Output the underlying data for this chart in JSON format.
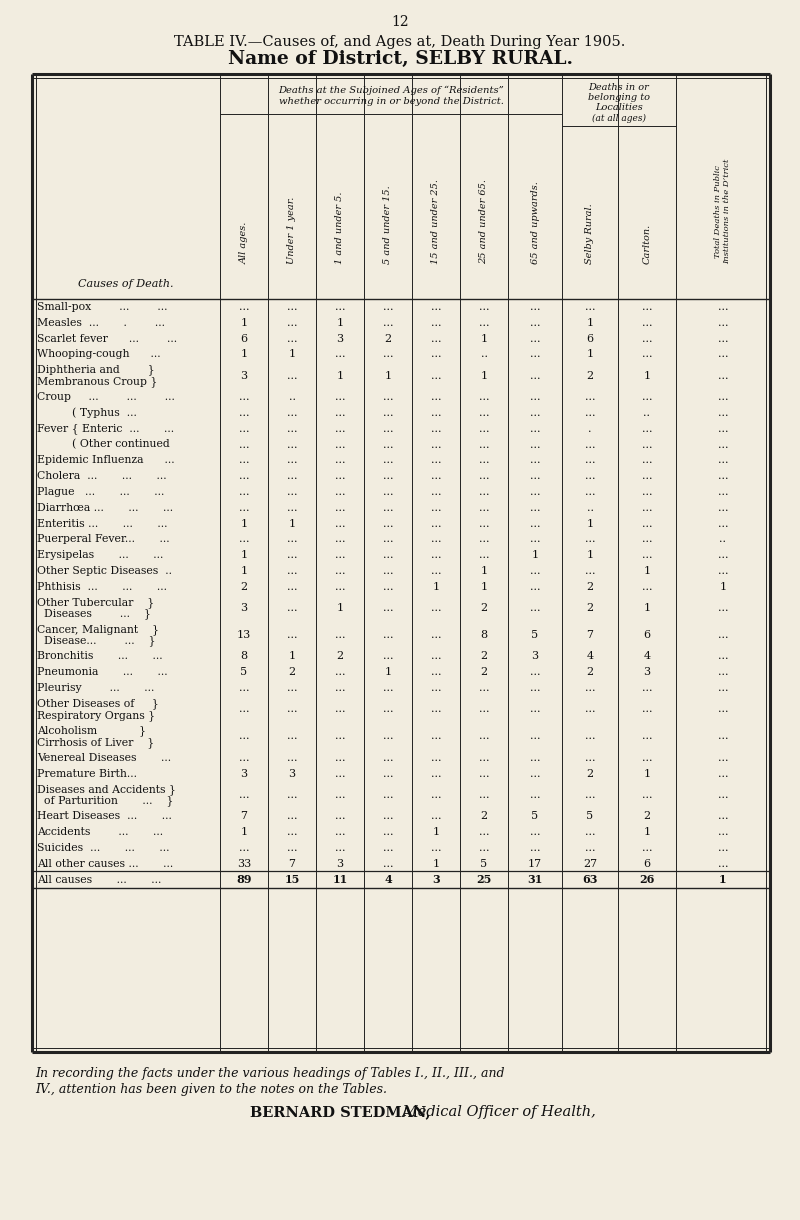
{
  "page_number": "12",
  "title_line1": "TABLE IV.—Causes of, and Ages at, Death During Year 1905.",
  "title_line2": "Name of District, SELBY RURAL.",
  "header_group1": "Deaths at the Subjoined Ages of “Residents”",
  "header_group1b": "whether occurring in or beyond the District.",
  "header_group2_1": "Deaths in or",
  "header_group2_2": "belonging to",
  "header_group2_3": "Localities",
  "header_group2_4": "(at all ages)",
  "header_last_col": "Total Deaths in Public\nInstitutions in the D’trict",
  "col_headers": [
    "All ages.",
    "Under 1 year.",
    "1 and under 5.",
    "5 and under 15.",
    "15 and under 25.",
    "25 and under 65.",
    "65 and upwards.",
    "Selby Rural.",
    "Carlton."
  ],
  "cause_col_label": "Causes of Death.",
  "rows": [
    {
      "label": "Small-pox        ...        ...",
      "vals": [
        "...",
        "...",
        "...",
        "...",
        "...",
        "...",
        "...",
        "...",
        "...",
        "..."
      ],
      "multiline": false
    },
    {
      "label": "Measles  ...       .        ...",
      "vals": [
        "1",
        "...",
        "1",
        "...",
        "...",
        "...",
        "...",
        "1",
        "...",
        "..."
      ],
      "multiline": false
    },
    {
      "label": "Scarlet fever      ...        ...",
      "vals": [
        "6",
        "...",
        "3",
        "2",
        "...",
        "1",
        "...",
        "6",
        "...",
        "..."
      ],
      "multiline": false
    },
    {
      "label": "Whooping-cough      ...",
      "vals": [
        "1",
        "1",
        "...",
        "...",
        "...",
        "..",
        "...",
        "1",
        "...",
        "..."
      ],
      "multiline": false
    },
    {
      "label": "Diphtheria and        }",
      "label2": "Membranous Croup }",
      "vals": [
        "3",
        "...",
        "1",
        "1",
        "...",
        "1",
        "...",
        "2",
        "1",
        "..."
      ],
      "multiline": true
    },
    {
      "label": "Croup     ...        ...        ...",
      "vals": [
        "...",
        "..",
        "...",
        "...",
        "...",
        "...",
        "...",
        "...",
        "...",
        "..."
      ],
      "multiline": false
    },
    {
      "label": "          ( Typhus  ...",
      "vals": [
        "...",
        "...",
        "...",
        "...",
        "...",
        "...",
        "...",
        "...",
        "..",
        "..."
      ],
      "multiline": false
    },
    {
      "label": "Fever { Enteric  ...       ...",
      "vals": [
        "...",
        "...",
        "...",
        "...",
        "...",
        "...",
        "...",
        ".",
        "...",
        "..."
      ],
      "multiline": false
    },
    {
      "label": "          ( Other continued",
      "vals": [
        "...",
        "...",
        "...",
        "...",
        "...",
        "...",
        "...",
        "...",
        "...",
        "..."
      ],
      "multiline": false
    },
    {
      "label": "Epidemic Influenza      ...",
      "vals": [
        "...",
        "...",
        "...",
        "...",
        "...",
        "...",
        "...",
        "...",
        "...",
        "..."
      ],
      "multiline": false
    },
    {
      "label": "Cholera  ...       ...       ...",
      "vals": [
        "...",
        "...",
        "...",
        "...",
        "...",
        "...",
        "...",
        "...",
        "...",
        "..."
      ],
      "multiline": false
    },
    {
      "label": "Plague   ...       ...       ...",
      "vals": [
        "...",
        "...",
        "...",
        "...",
        "...",
        "...",
        "...",
        "...",
        "...",
        "..."
      ],
      "multiline": false
    },
    {
      "label": "Diarrhœa ...       ...       ...",
      "vals": [
        "...",
        "...",
        "...",
        "...",
        "...",
        "...",
        "...",
        "..",
        "...",
        "..."
      ],
      "multiline": false
    },
    {
      "label": "Enteritis ...       ...       ...",
      "vals": [
        "1",
        "1",
        "...",
        "...",
        "...",
        "...",
        "...",
        "1",
        "...",
        "..."
      ],
      "multiline": false
    },
    {
      "label": "Puerperal Fever...       ...",
      "vals": [
        "...",
        "...",
        "...",
        "...",
        "...",
        "...",
        "...",
        "...",
        "...",
        ".."
      ],
      "multiline": false
    },
    {
      "label": "Erysipelas       ...       ...",
      "vals": [
        "1",
        "...",
        "...",
        "...",
        "...",
        "...",
        "1",
        "1",
        "...",
        "..."
      ],
      "multiline": false
    },
    {
      "label": "Other Septic Diseases  ..",
      "vals": [
        "1",
        "...",
        "...",
        "...",
        "...",
        "1",
        "...",
        "...",
        "1",
        "..."
      ],
      "multiline": false
    },
    {
      "label": "Phthisis  ...       ...       ...",
      "vals": [
        "2",
        "...",
        "...",
        "...",
        "1",
        "1",
        "...",
        "2",
        "...",
        "1"
      ],
      "multiline": false
    },
    {
      "label": "Other Tubercular    }",
      "label2": "  Diseases        ...    }",
      "vals": [
        "3",
        "...",
        "1",
        "...",
        "...",
        "2",
        "...",
        "2",
        "1",
        "..."
      ],
      "multiline": true
    },
    {
      "label": "Cancer, Malignant    }",
      "label2": "  Disease...        ...    }",
      "vals": [
        "13",
        "...",
        "...",
        "...",
        "...",
        "8",
        "5",
        "7",
        "6",
        "..."
      ],
      "multiline": true
    },
    {
      "label": "Bronchitis       ...       ...",
      "vals": [
        "8",
        "1",
        "2",
        "...",
        "...",
        "2",
        "3",
        "4",
        "4",
        "..."
      ],
      "multiline": false
    },
    {
      "label": "Pneumonia       ...       ...",
      "vals": [
        "5",
        "2",
        "...",
        "1",
        "...",
        "2",
        "...",
        "2",
        "3",
        "..."
      ],
      "multiline": false
    },
    {
      "label": "Pleurisy        ...       ...",
      "vals": [
        "...",
        "...",
        "...",
        "...",
        "...",
        "...",
        "...",
        "...",
        "...",
        "..."
      ],
      "multiline": false
    },
    {
      "label": "Other Diseases of     }",
      "label2": "Respiratory Organs }",
      "vals": [
        "...",
        "...",
        "...",
        "...",
        "...",
        "...",
        "...",
        "...",
        "...",
        "..."
      ],
      "multiline": true
    },
    {
      "label": "Alcoholism            }",
      "label2": "Cirrhosis of Liver    }",
      "vals": [
        "...",
        "...",
        "...",
        "...",
        "...",
        "...",
        "...",
        "...",
        "...",
        "..."
      ],
      "multiline": true
    },
    {
      "label": "Venereal Diseases       ...",
      "vals": [
        "...",
        "...",
        "...",
        "...",
        "...",
        "...",
        "...",
        "...",
        "...",
        "..."
      ],
      "multiline": false
    },
    {
      "label": "Premature Birth...",
      "vals": [
        "3",
        "3",
        "...",
        "...",
        "...",
        "...",
        "...",
        "2",
        "1",
        "..."
      ],
      "multiline": false
    },
    {
      "label": "Diseases and Accidents }",
      "label2": "  of Parturition       ...    }",
      "vals": [
        "...",
        "...",
        "...",
        "...",
        "...",
        "...",
        "...",
        "...",
        "...",
        "..."
      ],
      "multiline": true
    },
    {
      "label": "Heart Diseases  ...       ...",
      "vals": [
        "7",
        "...",
        "...",
        "...",
        "...",
        "2",
        "5",
        "5",
        "2",
        "..."
      ],
      "multiline": false
    },
    {
      "label": "Accidents        ...       ...",
      "vals": [
        "1",
        "...",
        "...",
        "...",
        "1",
        "...",
        "...",
        "...",
        "1",
        "..."
      ],
      "multiline": false
    },
    {
      "label": "Suicides  ...       ...       ...",
      "vals": [
        "...",
        "...",
        "...",
        "...",
        "...",
        "...",
        "...",
        "...",
        "...",
        "..."
      ],
      "multiline": false
    },
    {
      "label": "All other causes ...       ...",
      "vals": [
        "33",
        "7",
        "3",
        "...",
        "1",
        "5",
        "17",
        "27",
        "6",
        "..."
      ],
      "multiline": false
    },
    {
      "label": "All causes       ...       ...",
      "vals": [
        "89",
        "15",
        "11",
        "4",
        "3",
        "25",
        "31",
        "63",
        "26",
        "1"
      ],
      "multiline": false,
      "is_total": true
    }
  ],
  "footer_line1": "In recording the facts under the various headings of Tables I., II., III., and",
  "footer_line2": "IV., attention has been given to the notes on the Tables.",
  "footer_sig_bold": "BERNARD STEDMAN,",
  "footer_sig_italic": " Medical Officer of Health,",
  "bg_color": "#f2ede0",
  "text_color": "#111111",
  "line_color": "#222222"
}
